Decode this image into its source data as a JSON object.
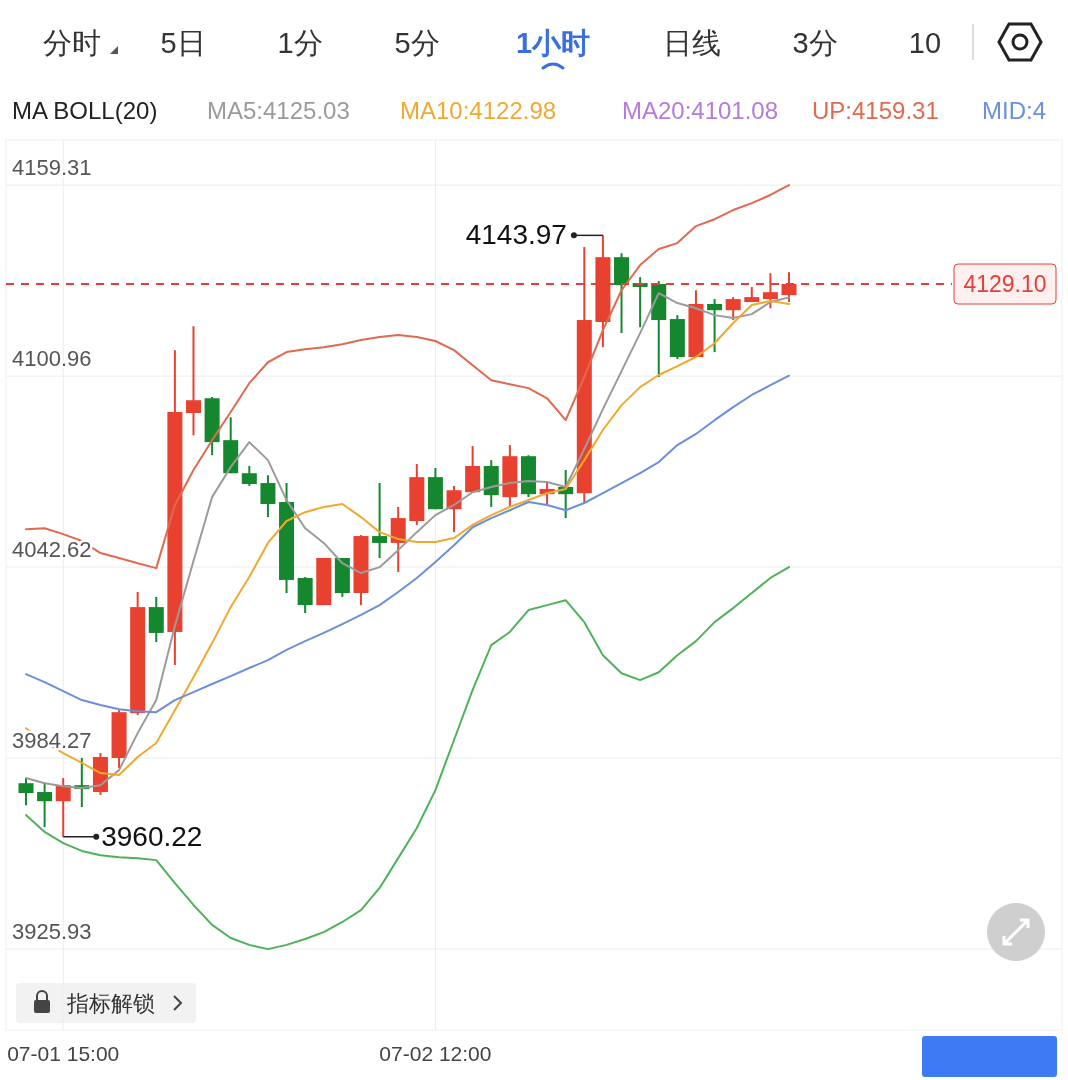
{
  "chart_data": {
    "type": "candlestick",
    "title": "MA BOLL(20)",
    "categories": [
      null,
      null,
      "07-01 15:00",
      null,
      null,
      null,
      null,
      null,
      null,
      null,
      null,
      null,
      null,
      null,
      null,
      null,
      null,
      null,
      null,
      null,
      null,
      null,
      "07-02 12:00",
      null,
      null,
      null,
      null,
      null,
      null,
      null,
      null,
      null,
      null,
      null,
      null,
      null,
      null,
      null,
      null,
      null,
      null,
      null
    ],
    "ohlc": [
      [
        3976.6,
        3978.2,
        3969.9,
        3973.6
      ],
      [
        3973.9,
        3976.9,
        3963.2,
        3971.1
      ],
      [
        3971.1,
        3978.2,
        3960.22,
        3976.0
      ],
      [
        3976.0,
        3984.3,
        3969.3,
        3974.8
      ],
      [
        3973.9,
        3985.8,
        3973.0,
        3984.6
      ],
      [
        3984.3,
        3998.9,
        3981.2,
        3998.3
      ],
      [
        3998.0,
        4035.0,
        3997.4,
        4030.4
      ],
      [
        4030.4,
        4033.5,
        4019.7,
        4022.5
      ],
      [
        4022.8,
        4108.9,
        4012.7,
        4090.0
      ],
      [
        4089.7,
        4116.2,
        4082.9,
        4093.6
      ],
      [
        4094.2,
        4094.6,
        4076.8,
        4080.8
      ],
      [
        4081.4,
        4088.4,
        4071.3,
        4071.3
      ],
      [
        4071.3,
        4073.5,
        4067.4,
        4068.0
      ],
      [
        4068.3,
        4070.7,
        4057.9,
        4061.9
      ],
      [
        4062.5,
        4068.3,
        4034.7,
        4038.7
      ],
      [
        4039.3,
        4039.6,
        4028.6,
        4031.0
      ],
      [
        4031.0,
        4045.4,
        4031.0,
        4045.4
      ],
      [
        4045.4,
        4045.4,
        4033.5,
        4034.7
      ],
      [
        4034.7,
        4052.4,
        4031.0,
        4052.1
      ],
      [
        4052.1,
        4068.3,
        4045.4,
        4050.0
      ],
      [
        4050.0,
        4061.0,
        4041.1,
        4057.6
      ],
      [
        4056.7,
        4074.1,
        4055.5,
        4070.1
      ],
      [
        4070.1,
        4072.9,
        4060.3,
        4060.3
      ],
      [
        4060.3,
        4067.4,
        4053.3,
        4066.1
      ],
      [
        4065.5,
        4079.6,
        4065.5,
        4073.5
      ],
      [
        4073.5,
        4075.3,
        4061.0,
        4064.6
      ],
      [
        4064.0,
        4079.9,
        4061.3,
        4076.5
      ],
      [
        4076.5,
        4076.8,
        4064.0,
        4064.9
      ],
      [
        4064.9,
        4068.3,
        4061.6,
        4066.5
      ],
      [
        4067.1,
        4072.3,
        4057.6,
        4064.9
      ],
      [
        4065.2,
        4140.4,
        4062.2,
        4118.1
      ],
      [
        4117.5,
        4143.97,
        4109.8,
        4137.3
      ],
      [
        4137.3,
        4138.5,
        4114.1,
        4128.8
      ],
      [
        4129.4,
        4131.2,
        4115.9,
        4128.2
      ],
      [
        4129.1,
        4130.0,
        4100.7,
        4118.1
      ],
      [
        4118.4,
        4119.6,
        4106.2,
        4106.8
      ],
      [
        4106.8,
        4127.2,
        4106.8,
        4123.0
      ],
      [
        4123.0,
        4124.5,
        4108.3,
        4121.1
      ],
      [
        4121.1,
        4125.1,
        4118.1,
        4124.5
      ],
      [
        4123.6,
        4128.2,
        4123.6,
        4125.1
      ],
      [
        4124.5,
        4132.4,
        4121.7,
        4126.6
      ],
      [
        4125.7,
        4132.7,
        4123.6,
        4129.1
      ]
    ],
    "colors": [
      "#15882f",
      "#15882f",
      "#e8412f",
      "#15882f",
      "#e8412f",
      "#e8412f",
      "#e8412f",
      "#15882f",
      "#e8412f",
      "#e8412f",
      "#15882f",
      "#15882f",
      "#15882f",
      "#15882f",
      "#15882f",
      "#15882f",
      "#e8412f",
      "#15882f",
      "#e8412f",
      "#15882f",
      "#e8412f",
      "#e8412f",
      "#15882f",
      "#e8412f",
      "#e8412f",
      "#15882f",
      "#e8412f",
      "#15882f",
      "#e8412f",
      "#15882f",
      "#e8412f",
      "#e8412f",
      "#15882f",
      "#15882f",
      "#15882f",
      "#15882f",
      "#e8412f",
      "#15882f",
      "#e8412f",
      "#e8412f",
      "#e8412f",
      "#e8412f"
    ],
    "series": [
      {
        "type": "line",
        "name": "MA5:4125.03",
        "color": "#9b9b9b",
        "values": [
          3978.2,
          3976.6,
          3975.7,
          3975.1,
          3976.0,
          3980.6,
          3991.9,
          4002.0,
          4024.6,
          4044.5,
          4064.0,
          4073.2,
          4080.8,
          4075.3,
          4063.1,
          4054.5,
          4050.0,
          4043.8,
          4040.8,
          4042.6,
          4047.8,
          4053.3,
          4058.5,
          4061.6,
          4065.5,
          4067.1,
          4068.3,
          4068.9,
          4068.6,
          4067.1,
          4078.7,
          4090.9,
          4102.5,
          4114.1,
          4126.3,
          4123.3,
          4121.7,
          4119.6,
          4118.7,
          4119.9,
          4123.6,
          4125.03
        ]
      },
      {
        "type": "line",
        "name": "MA10:4122.98",
        "color": "#f0a92e",
        "values": [
          3993.4,
          3989.2,
          3985.8,
          3982.8,
          3979.7,
          3979.1,
          3984.6,
          3988.9,
          3998.9,
          4009.0,
          4019.4,
          4030.4,
          4039.6,
          4050.0,
          4056.7,
          4059.4,
          4061.0,
          4061.9,
          4057.9,
          4053.3,
          4051.2,
          4050.3,
          4050.3,
          4051.5,
          4055.5,
          4058.5,
          4061.0,
          4063.1,
          4065.2,
          4066.5,
          4075.3,
          4084.5,
          4092.1,
          4097.6,
          4101.3,
          4104.0,
          4106.8,
          4111.0,
          4117.2,
          4122.7,
          4123.9,
          4122.98
        ]
      },
      {
        "type": "line",
        "name": "UP:4159.31",
        "color": "#e06a4f",
        "values": [
          4054.2,
          4054.5,
          4052.7,
          4050.6,
          4046.9,
          4045.4,
          4043.8,
          4042.3,
          4061.6,
          4072.3,
          4081.4,
          4090.0,
          4098.8,
          4105.2,
          4108.3,
          4109.2,
          4109.8,
          4110.7,
          4112.0,
          4112.9,
          4113.5,
          4112.9,
          4111.7,
          4108.9,
          4104.3,
          4099.7,
          4098.5,
          4097.3,
          4094.2,
          4087.5,
          4100.7,
          4115.0,
          4127.2,
          4134.9,
          4139.8,
          4141.6,
          4146.8,
          4148.9,
          4151.7,
          4153.8,
          4156.3,
          4159.31
        ]
      },
      {
        "type": "line",
        "name": "MID:4",
        "color": "#6b8fdd",
        "values": [
          4009.9,
          4007.5,
          4004.7,
          4002.0,
          4000.5,
          3999.2,
          3998.6,
          3998.3,
          4002.0,
          4004.4,
          4006.9,
          4009.3,
          4011.8,
          4014.2,
          4017.3,
          4020.0,
          4022.5,
          4025.2,
          4028.0,
          4031.0,
          4035.0,
          4039.3,
          4044.2,
          4049.3,
          4054.8,
          4057.6,
          4060.0,
          4062.5,
          4061.6,
          4060.0,
          4062.2,
          4065.2,
          4068.3,
          4071.3,
          4074.7,
          4079.9,
          4083.3,
          4087.5,
          4091.5,
          4095.2,
          4098.2,
          4101.1
        ]
      },
      {
        "type": "line",
        "color": "#4fb25a",
        "values": [
          3966.9,
          3961.7,
          3958.3,
          3955.9,
          3954.6,
          3954.0,
          3953.7,
          3953.1,
          3946.1,
          3939.4,
          3933.3,
          3929.3,
          3927.2,
          3925.9,
          3927.2,
          3929.0,
          3931.1,
          3934.2,
          3937.8,
          3944.6,
          3953.7,
          3962.9,
          3974.5,
          3989.8,
          4005.1,
          4018.8,
          4022.8,
          4029.5,
          4031.0,
          4032.5,
          4025.8,
          4015.7,
          4010.2,
          4008.1,
          4010.5,
          4015.7,
          4020.0,
          4025.8,
          4030.1,
          4034.7,
          4039.3,
          4042.6
        ]
      }
    ],
    "ylim": [
      3901.2,
      4173.1
    ],
    "yticks": [
      4159.31,
      4100.96,
      4042.62,
      3984.27,
      3925.93
    ],
    "grid": true,
    "legend": "top",
    "ref_lines": [
      {
        "axis": "y",
        "value": 4129.1,
        "label": "4129.10",
        "color": "#e0413a",
        "line_style": "dashed"
      }
    ],
    "annotations": [
      "分时",
      "5日",
      "1分",
      "5分",
      "1小时",
      "日线",
      "3分",
      "10",
      "MA20:4101.08",
      "指标解锁",
      "4143.97",
      "3960.22"
    ]
  }
}
